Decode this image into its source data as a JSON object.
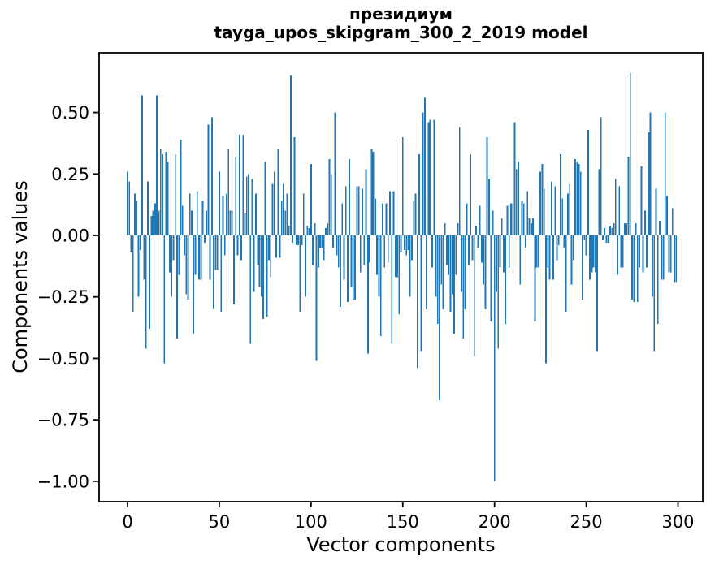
{
  "figure": {
    "title": "президиум",
    "subtitle": "tayga_upos_skipgram_300_2_2019 model"
  },
  "chart_data": {
    "type": "bar",
    "title": "президиум",
    "subtitle": "tayga_upos_skipgram_300_2_2019 model",
    "xlabel": "Vector components",
    "ylabel": "Components values",
    "x_ticks": [
      0,
      50,
      100,
      150,
      200,
      250,
      300
    ],
    "y_ticks": [
      0.5,
      0.25,
      0.0,
      -0.25,
      -0.5,
      -0.75,
      -1.0
    ],
    "xlim": [
      -15.5,
      313.5
    ],
    "ylim": [
      -1.083,
      0.743
    ],
    "grid": false,
    "legend": "none",
    "bar_width": 0.8,
    "bar_color": "#1f77b4",
    "axis_color": "#000000",
    "n_components": 300,
    "values": [
      0.26,
      0.22,
      -0.07,
      -0.31,
      0.17,
      0.14,
      -0.25,
      -0.06,
      0.57,
      -0.18,
      -0.46,
      0.22,
      -0.38,
      0.08,
      0.1,
      0.13,
      0.57,
      0.1,
      0.35,
      0.33,
      -0.52,
      0.34,
      0.3,
      -0.15,
      -0.25,
      -0.1,
      0.33,
      -0.42,
      -0.16,
      0.39,
      0.12,
      -0.08,
      -0.24,
      -0.26,
      0.17,
      0.1,
      -0.4,
      -0.16,
      0.18,
      -0.18,
      -0.18,
      0.14,
      -0.03,
      0.1,
      0.45,
      -0.18,
      0.48,
      -0.3,
      -0.14,
      -0.14,
      0.26,
      -0.31,
      0.16,
      -0.08,
      0.17,
      0.35,
      0.1,
      0.1,
      -0.28,
      0.32,
      -0.08,
      0.41,
      -0.1,
      0.41,
      0.09,
      0.24,
      0.25,
      -0.44,
      0.23,
      -0.23,
      0.17,
      -0.12,
      -0.21,
      -0.25,
      -0.34,
      0.3,
      -0.33,
      -0.1,
      -0.17,
      0.21,
      0.26,
      -0.09,
      0.35,
      -0.09,
      0.14,
      0.21,
      0.1,
      0.17,
      0.04,
      0.65,
      -0.03,
      0.4,
      -0.04,
      -0.04,
      -0.31,
      -0.04,
      0.17,
      -0.25,
      0.04,
      0.03,
      0.29,
      -0.12,
      0.05,
      -0.51,
      -0.13,
      -0.05,
      -0.05,
      -0.1,
      0.03,
      0.05,
      0.31,
      0.25,
      -0.05,
      0.5,
      -0.08,
      -0.13,
      -0.29,
      0.13,
      -0.18,
      0.2,
      -0.27,
      0.31,
      -0.21,
      -0.26,
      -0.26,
      0.2,
      0.2,
      -0.15,
      0.19,
      -0.12,
      0.27,
      -0.48,
      -0.11,
      0.35,
      0.34,
      0.15,
      -0.16,
      -0.25,
      -0.41,
      0.13,
      -0.13,
      0.13,
      -0.11,
      0.18,
      -0.44,
      0.18,
      -0.17,
      -0.17,
      -0.32,
      -0.07,
      0.4,
      -0.06,
      -0.08,
      -0.06,
      -0.25,
      -0.1,
      0.14,
      0.17,
      -0.54,
      0.33,
      -0.47,
      0.5,
      0.56,
      -0.3,
      0.46,
      0.47,
      -0.13,
      0.47,
      -0.25,
      -0.36,
      -0.67,
      -0.2,
      -0.3,
      0.05,
      -0.12,
      -0.16,
      -0.31,
      -0.24,
      -0.4,
      -0.16,
      0.05,
      0.44,
      -0.23,
      -0.42,
      -0.3,
      0.13,
      -0.12,
      0.33,
      -0.1,
      -0.49,
      0.04,
      -0.05,
      0.12,
      -0.11,
      -0.2,
      -0.3,
      0.4,
      0.23,
      -0.35,
      0.1,
      -1.0,
      -0.23,
      -0.46,
      -0.13,
      0.07,
      -0.15,
      -0.36,
      0.12,
      -0.13,
      0.13,
      0.13,
      0.46,
      0.27,
      0.3,
      -0.2,
      0.14,
      0.13,
      -0.05,
      0.18,
      0.07,
      0.05,
      0.07,
      -0.35,
      -0.13,
      -0.13,
      0.26,
      0.29,
      0.19,
      -0.52,
      -0.13,
      -0.18,
      0.22,
      -0.18,
      0.2,
      -0.1,
      -0.04,
      0.33,
      0.15,
      -0.05,
      -0.31,
      0.17,
      0.21,
      -0.2,
      -0.1,
      0.31,
      0.3,
      0.29,
      0.26,
      -0.26,
      -0.02,
      -0.08,
      0.43,
      -0.18,
      -0.15,
      -0.13,
      -0.15,
      -0.47,
      0.27,
      0.48,
      -0.02,
      0.03,
      -0.03,
      -0.03,
      0.04,
      0.03,
      0.05,
      0.23,
      -0.16,
      0.2,
      -0.13,
      -0.13,
      0.05,
      0.05,
      0.32,
      0.66,
      -0.26,
      -0.27,
      0.05,
      -0.27,
      -0.13,
      0.28,
      -0.15,
      0.1,
      -0.13,
      0.42,
      0.5,
      -0.25,
      -0.47,
      0.19,
      -0.36,
      0.06,
      -0.18,
      -0.18,
      0.5,
      0.16,
      -0.15,
      -0.15,
      0.11,
      -0.19,
      -0.19
    ]
  }
}
